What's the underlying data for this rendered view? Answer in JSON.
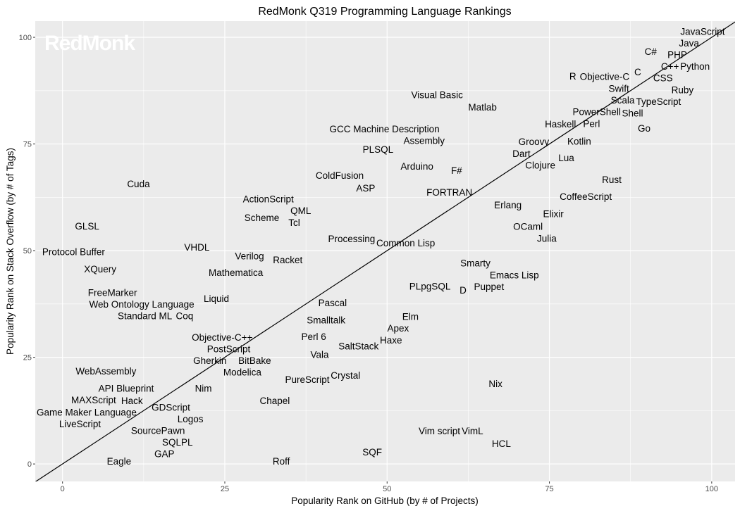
{
  "chart_data": {
    "type": "scatter",
    "title": "RedMonk Q319 Programming Language Rankings",
    "xlabel": "Popularity Rank on GitHub (by # of Projects)",
    "ylabel": "Popularity Rank on Stack Overflow (by # of Tags)",
    "watermark": "RedMonk",
    "xlim": [
      -4.2,
      103.6
    ],
    "ylim": [
      -4.1,
      103.8
    ],
    "xticks": [
      0,
      25,
      50,
      75,
      100
    ],
    "yticks": [
      0,
      25,
      50,
      75,
      100
    ],
    "grid": true,
    "reference_line": "y = x",
    "colors": {
      "panel": "#EBEBEB",
      "grid": "#FFFFFF",
      "text": "#000000",
      "line": "#000000"
    },
    "points": [
      {
        "label": "JavaScript",
        "x": 98.6,
        "y": 98.7
      },
      {
        "label": "Java",
        "x": 96.5,
        "y": 97.5
      },
      {
        "label": "PHP",
        "x": 94.7,
        "y": 95.7
      },
      {
        "label": "C++",
        "x": 93.6,
        "y": 93.7
      },
      {
        "label": "Python",
        "x": 97.4,
        "y": 94.7
      },
      {
        "label": "C#",
        "x": 90.6,
        "y": 96.7
      },
      {
        "label": "CSS",
        "x": 92.5,
        "y": 92.7
      },
      {
        "label": "C",
        "x": 88.6,
        "y": 91.9
      },
      {
        "label": "R",
        "x": 78.6,
        "y": 90.9
      },
      {
        "label": "Objective-C",
        "x": 83.5,
        "y": 89.8
      },
      {
        "label": "Swift",
        "x": 85.7,
        "y": 88.8
      },
      {
        "label": "Ruby",
        "x": 95.5,
        "y": 87.6
      },
      {
        "label": "Scala",
        "x": 86.5,
        "y": 85.6
      },
      {
        "label": "TypeScript",
        "x": 91.6,
        "y": 84.7
      },
      {
        "label": "Shell",
        "x": 87.6,
        "y": 82.7
      },
      {
        "label": "PowerShell",
        "x": 82.5,
        "y": 81.7
      },
      {
        "label": "Perl",
        "x": 81.5,
        "y": 80.7
      },
      {
        "label": "Haskell",
        "x": 76.7,
        "y": 79.7
      },
      {
        "label": "Go",
        "x": 89.6,
        "y": 78.7
      },
      {
        "label": "Kotlin",
        "x": 79.6,
        "y": 75.7
      },
      {
        "label": "Groovy",
        "x": 72.6,
        "y": 74.8
      },
      {
        "label": "Dart",
        "x": 70.7,
        "y": 72.8
      },
      {
        "label": "Lua",
        "x": 77.6,
        "y": 71.8
      },
      {
        "label": "Clojure",
        "x": 73.6,
        "y": 70.8
      },
      {
        "label": "Rust",
        "x": 84.6,
        "y": 66.7
      },
      {
        "label": "CoffeeScript",
        "x": 80.6,
        "y": 62.7
      },
      {
        "label": "Erlang",
        "x": 68.6,
        "y": 60.7
      },
      {
        "label": "Elixir",
        "x": 75.6,
        "y": 58.7
      },
      {
        "label": "OCaml",
        "x": 71.7,
        "y": 54.8
      },
      {
        "label": "Julia",
        "x": 74.6,
        "y": 53.8
      },
      {
        "label": "Visual Basic",
        "x": 57.7,
        "y": 86.6
      },
      {
        "label": "Matlab",
        "x": 64.7,
        "y": 83.7
      },
      {
        "label": "GCC Machine Description",
        "x": 49.6,
        "y": 77.7
      },
      {
        "label": "Assembly",
        "x": 55.7,
        "y": 76.7
      },
      {
        "label": "PLSQL",
        "x": 48.6,
        "y": 73.8
      },
      {
        "label": "Arduino",
        "x": 54.6,
        "y": 69.8
      },
      {
        "label": "F#",
        "x": 60.7,
        "y": 68.8
      },
      {
        "label": "ColdFusion",
        "x": 42.7,
        "y": 67.7
      },
      {
        "label": "ASP",
        "x": 46.7,
        "y": 64.7
      },
      {
        "label": "FORTRAN",
        "x": 59.6,
        "y": 63.7
      },
      {
        "label": "Cuda",
        "x": 11.7,
        "y": 65.7
      },
      {
        "label": "ActionScript",
        "x": 31.7,
        "y": 61.7
      },
      {
        "label": "QML",
        "x": 36.7,
        "y": 59.7
      },
      {
        "label": "Scheme",
        "x": 30.7,
        "y": 57.8
      },
      {
        "label": "Tcl",
        "x": 35.7,
        "y": 56.8
      },
      {
        "label": "GLSL",
        "x": 3.8,
        "y": 55.8
      },
      {
        "label": "Processing",
        "x": 44.7,
        "y": 52.8
      },
      {
        "label": "Common Lisp",
        "x": 52.7,
        "y": 51.8
      },
      {
        "label": "Protocol Buffer",
        "x": 1.7,
        "y": 49.8
      },
      {
        "label": "VHDL",
        "x": 20.7,
        "y": 50.8
      },
      {
        "label": "Verilog",
        "x": 28.8,
        "y": 48.8
      },
      {
        "label": "Racket",
        "x": 34.7,
        "y": 47.9
      },
      {
        "label": "XQuery",
        "x": 5.8,
        "y": 45.7
      },
      {
        "label": "Mathematica",
        "x": 26.7,
        "y": 44.9
      },
      {
        "label": "Smarty",
        "x": 63.6,
        "y": 46.7
      },
      {
        "label": "Emacs Lisp",
        "x": 69.6,
        "y": 43.7
      },
      {
        "label": "Puppet",
        "x": 65.7,
        "y": 42.7
      },
      {
        "label": "PLpgSQL",
        "x": 56.6,
        "y": 41.7
      },
      {
        "label": "D",
        "x": 61.7,
        "y": 40.8
      },
      {
        "label": "FreeMarker",
        "x": 7.7,
        "y": 39.8
      },
      {
        "label": "Liquid",
        "x": 23.7,
        "y": 38.8
      },
      {
        "label": "Web Ontology Language",
        "x": 12.2,
        "y": 36.8
      },
      {
        "label": "Coq",
        "x": 18.8,
        "y": 35.8
      },
      {
        "label": "Standard ML",
        "x": 12.7,
        "y": 34.8
      },
      {
        "label": "Pascal",
        "x": 41.6,
        "y": 37.8
      },
      {
        "label": "Smalltalk",
        "x": 40.6,
        "y": 33.8
      },
      {
        "label": "Elm",
        "x": 53.6,
        "y": 32.8
      },
      {
        "label": "Apex",
        "x": 51.7,
        "y": 31.8
      },
      {
        "label": "Haxe",
        "x": 50.6,
        "y": 30.9
      },
      {
        "label": "Perl 6",
        "x": 38.7,
        "y": 29.9
      },
      {
        "label": "SaltStack",
        "x": 45.6,
        "y": 27.7
      },
      {
        "label": "Objective-C++",
        "x": 24.6,
        "y": 28.7
      },
      {
        "label": "PostScript",
        "x": 25.6,
        "y": 26.7
      },
      {
        "label": "Vala",
        "x": 39.6,
        "y": 25.7
      },
      {
        "label": "Gherkin",
        "x": 22.7,
        "y": 24.8
      },
      {
        "label": "BitBake",
        "x": 29.6,
        "y": 23.8
      },
      {
        "label": "Modelica",
        "x": 27.7,
        "y": 22.8
      },
      {
        "label": "WebAssembly",
        "x": 6.7,
        "y": 21.8
      },
      {
        "label": "Crystal",
        "x": 43.6,
        "y": 20.8
      },
      {
        "label": "PureScript",
        "x": 37.7,
        "y": 19.8
      },
      {
        "label": "Nix",
        "x": 66.7,
        "y": 18.8
      },
      {
        "label": "Nim",
        "x": 21.7,
        "y": 17.8
      },
      {
        "label": "API Blueprint",
        "x": 9.8,
        "y": 16.8
      },
      {
        "label": "MAXScript",
        "x": 4.8,
        "y": 15.8
      },
      {
        "label": "Chapel",
        "x": 32.7,
        "y": 14.9
      },
      {
        "label": "Hack",
        "x": 10.7,
        "y": 13.9
      },
      {
        "label": "GDScript",
        "x": 16.7,
        "y": 13.0
      },
      {
        "label": "Game Maker Language",
        "x": 1.2,
        "y": 11.9
      },
      {
        "label": "LiveScript",
        "x": 2.7,
        "y": 10.9
      },
      {
        "label": "Logos",
        "x": 19.7,
        "y": 9.9
      },
      {
        "label": "Vim script",
        "x": 58.6,
        "y": 7.8
      },
      {
        "label": "VimL",
        "x": 62.6,
        "y": 7.8
      },
      {
        "label": "SourcePawn",
        "x": 14.7,
        "y": 6.8
      },
      {
        "label": "SQLPL",
        "x": 17.7,
        "y": 5.8
      },
      {
        "label": "HCL",
        "x": 67.6,
        "y": 4.8
      },
      {
        "label": "GAP",
        "x": 15.7,
        "y": 3.8
      },
      {
        "label": "SQF",
        "x": 47.7,
        "y": 2.8
      },
      {
        "label": "Eagle",
        "x": 8.7,
        "y": 0.7
      },
      {
        "label": "Roff",
        "x": 33.7,
        "y": 0.7
      }
    ]
  }
}
